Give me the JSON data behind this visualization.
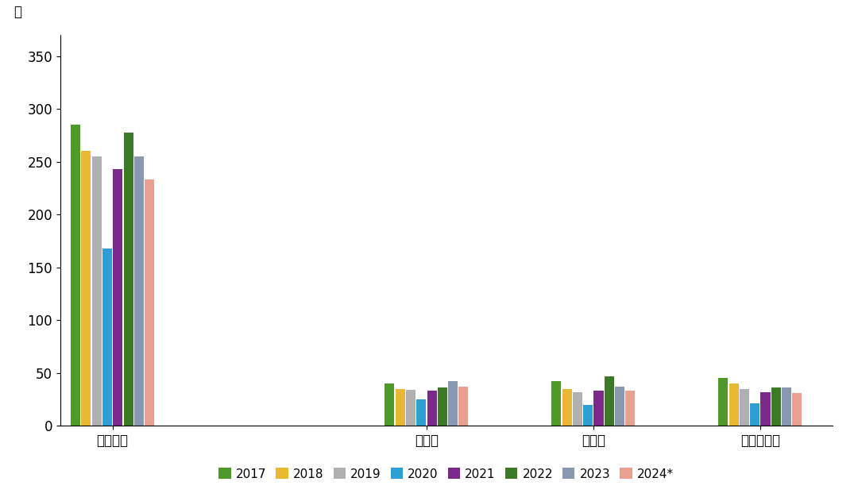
{
  "categories": [
    "中东地区",
    "土耳其",
    "阿联酋",
    "沙特阿拉伯"
  ],
  "years": [
    "2017",
    "2018",
    "2019",
    "2020",
    "2021",
    "2022",
    "2023",
    "2024*"
  ],
  "values": {
    "中东地区": [
      285,
      260,
      255,
      168,
      243,
      278,
      255,
      233
    ],
    "土耳其": [
      40,
      35,
      34,
      25,
      33,
      36,
      42,
      37
    ],
    "阿联酋": [
      42,
      35,
      32,
      20,
      33,
      47,
      37,
      33
    ],
    "沙特阿拉伯": [
      45,
      40,
      35,
      21,
      32,
      36,
      36,
      31
    ]
  },
  "colors": [
    "#4e9a28",
    "#e8b832",
    "#b0b0b0",
    "#2e9fd4",
    "#7b2a8a",
    "#3c7a28",
    "#8898b0",
    "#e8a090"
  ],
  "ylabel": "吨",
  "ylim": [
    0,
    370
  ],
  "yticks": [
    0,
    50,
    100,
    150,
    200,
    250,
    300,
    350
  ],
  "background_color": "#ffffff",
  "bar_width": 0.7,
  "legend_labels": [
    "2017",
    "2018",
    "2019",
    "2020",
    "2021",
    "2022",
    "2023",
    "2024*"
  ],
  "tick_fontsize": 12,
  "legend_fontsize": 11
}
